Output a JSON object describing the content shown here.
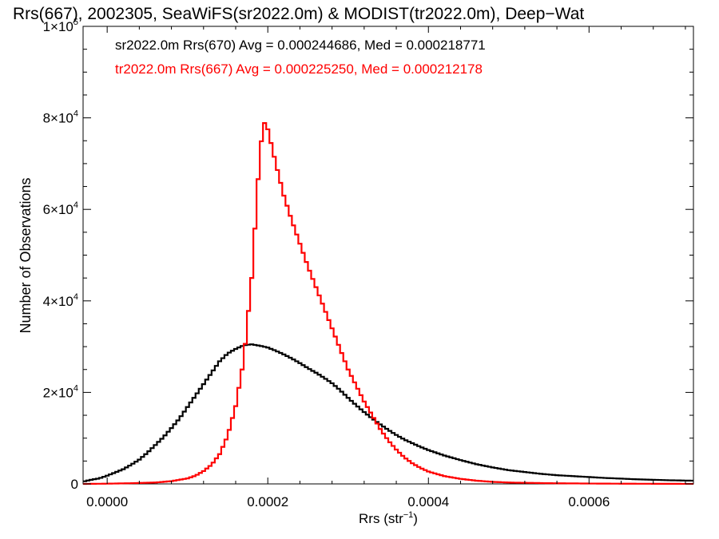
{
  "chart_data": {
    "type": "line",
    "title": "Rrs(667), 2002305, SeaWiFS(sr2022.0m) & MODIST(tr2022.0m), Deep−Wat",
    "xlabel_main": "Rrs (str",
    "xlabel_sup": "−1",
    "xlabel_end": ")",
    "ylabel": "Number of Observations",
    "xlim": [
      -3e-05,
      0.00073
    ],
    "ylim": [
      0,
      100000
    ],
    "x_ticks": [
      {
        "value": 0.0,
        "label": "0.0000"
      },
      {
        "value": 0.0002,
        "label": "0.0002"
      },
      {
        "value": 0.0004,
        "label": "0.0004"
      },
      {
        "value": 0.0006,
        "label": "0.0006"
      }
    ],
    "y_ticks": [
      {
        "value": 0,
        "base": "0",
        "sup": ""
      },
      {
        "value": 20000,
        "base": "2×10",
        "sup": "4"
      },
      {
        "value": 40000,
        "base": "4×10",
        "sup": "4"
      },
      {
        "value": 60000,
        "base": "6×10",
        "sup": "4"
      },
      {
        "value": 80000,
        "base": "8×10",
        "sup": "4"
      },
      {
        "value": 100000,
        "base": "1×10",
        "sup": "5"
      }
    ],
    "series": [
      {
        "name": "sr2022.0m Rrs(670) Avg = 0.000244686, Med = 0.000218771",
        "color": "#000000",
        "points": [
          [
            -3e-05,
            500
          ],
          [
            -2e-05,
            900
          ],
          [
            -1e-05,
            1200
          ],
          [
            0.0,
            1800
          ],
          [
            1e-05,
            2500
          ],
          [
            2e-05,
            3200
          ],
          [
            3e-05,
            4200
          ],
          [
            4e-05,
            5300
          ],
          [
            5e-05,
            6800
          ],
          [
            6e-05,
            8500
          ],
          [
            7e-05,
            10200
          ],
          [
            8e-05,
            12200
          ],
          [
            9e-05,
            14300
          ],
          [
            0.0001,
            16800
          ],
          [
            0.00011,
            19300
          ],
          [
            0.00012,
            21800
          ],
          [
            0.00013,
            24300
          ],
          [
            0.00014,
            26800
          ],
          [
            0.00015,
            28500
          ],
          [
            0.00016,
            29500
          ],
          [
            0.00017,
            30300
          ],
          [
            0.00018,
            30500
          ],
          [
            0.00019,
            30200
          ],
          [
            0.0002,
            29800
          ],
          [
            0.00021,
            29100
          ],
          [
            0.00022,
            28300
          ],
          [
            0.00023,
            27400
          ],
          [
            0.00024,
            26400
          ],
          [
            0.00025,
            25300
          ],
          [
            0.00026,
            24300
          ],
          [
            0.00027,
            23200
          ],
          [
            0.00028,
            22000
          ],
          [
            0.00029,
            20500
          ],
          [
            0.0003,
            18800
          ],
          [
            0.00031,
            17200
          ],
          [
            0.00032,
            15700
          ],
          [
            0.00033,
            14300
          ],
          [
            0.00034,
            13000
          ],
          [
            0.00035,
            11800
          ],
          [
            0.00036,
            10700
          ],
          [
            0.00037,
            9700
          ],
          [
            0.00038,
            8900
          ],
          [
            0.00039,
            8100
          ],
          [
            0.0004,
            7400
          ],
          [
            0.00042,
            6200
          ],
          [
            0.00044,
            5200
          ],
          [
            0.00046,
            4300
          ],
          [
            0.00048,
            3600
          ],
          [
            0.0005,
            3000
          ],
          [
            0.00052,
            2600
          ],
          [
            0.00054,
            2200
          ],
          [
            0.00056,
            1900
          ],
          [
            0.00058,
            1700
          ],
          [
            0.0006,
            1500
          ],
          [
            0.00062,
            1300
          ],
          [
            0.00064,
            1150
          ],
          [
            0.00066,
            1000
          ],
          [
            0.00068,
            900
          ],
          [
            0.0007,
            800
          ],
          [
            0.00073,
            700
          ]
        ]
      },
      {
        "name": "tr2022.0m Rrs(667) Avg = 0.000225250, Med = 0.000212178",
        "color": "#ff0000",
        "points": [
          [
            -3e-05,
            0
          ],
          [
            0.0,
            50
          ],
          [
            3e-05,
            150
          ],
          [
            6e-05,
            300
          ],
          [
            8e-05,
            600
          ],
          [
            0.0001,
            1200
          ],
          [
            0.00011,
            1800
          ],
          [
            0.00012,
            2800
          ],
          [
            0.00013,
            4200
          ],
          [
            0.00014,
            6500
          ],
          [
            0.00015,
            10500
          ],
          [
            0.00016,
            17000
          ],
          [
            0.00017,
            27000
          ],
          [
            0.00018,
            45000
          ],
          [
            0.00019,
            72000
          ],
          [
            0.000195,
            79200
          ],
          [
            0.0002,
            77500
          ],
          [
            0.00021,
            70000
          ],
          [
            0.00022,
            63000
          ],
          [
            0.00023,
            57500
          ],
          [
            0.00024,
            52500
          ],
          [
            0.00025,
            47500
          ],
          [
            0.00026,
            43000
          ],
          [
            0.00027,
            38500
          ],
          [
            0.00028,
            34000
          ],
          [
            0.00029,
            29500
          ],
          [
            0.0003,
            25000
          ],
          [
            0.00031,
            21500
          ],
          [
            0.00032,
            18000
          ],
          [
            0.00033,
            15000
          ],
          [
            0.00034,
            12000
          ],
          [
            0.00035,
            9500
          ],
          [
            0.00036,
            7500
          ],
          [
            0.00037,
            5800
          ],
          [
            0.00038,
            4500
          ],
          [
            0.00039,
            3500
          ],
          [
            0.0004,
            2700
          ],
          [
            0.00042,
            1700
          ],
          [
            0.00044,
            1100
          ],
          [
            0.00046,
            700
          ],
          [
            0.00048,
            450
          ],
          [
            0.0005,
            300
          ],
          [
            0.00055,
            150
          ],
          [
            0.0006,
            80
          ],
          [
            0.00065,
            40
          ],
          [
            0.0007,
            20
          ],
          [
            0.00073,
            10
          ]
        ]
      }
    ],
    "legend_placement": "top-left",
    "grid": false
  }
}
